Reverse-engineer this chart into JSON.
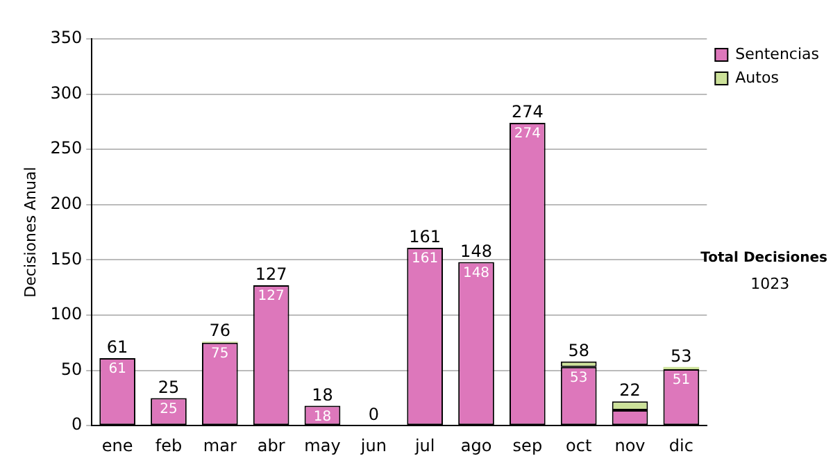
{
  "chart_data": {
    "type": "bar",
    "stacked": true,
    "ylabel": "Decisiones Anual",
    "categories": [
      "ene",
      "feb",
      "mar",
      "abr",
      "may",
      "jun",
      "jul",
      "ago",
      "sep",
      "oct",
      "nov",
      "dic"
    ],
    "series": [
      {
        "name": "Sentencias",
        "color": "#dd77bb",
        "values": [
          61,
          25,
          75,
          127,
          18,
          0,
          161,
          148,
          274,
          53,
          14,
          51
        ],
        "value_labels": [
          "61",
          "25",
          "75",
          "127",
          "18",
          null,
          "161",
          "148",
          "274",
          "53",
          null,
          "51"
        ]
      },
      {
        "name": "Autos",
        "color": "#cce199",
        "values": [
          0,
          0,
          1,
          0,
          0,
          0,
          0,
          0,
          0,
          5,
          8,
          2
        ]
      }
    ],
    "totals": [
      "61",
      "25",
      "76",
      "127",
      "18",
      "0",
      "161",
      "148",
      "274",
      "58",
      "22",
      "53"
    ],
    "ylim": [
      0,
      350
    ],
    "yticks": [
      0,
      50,
      100,
      150,
      200,
      250,
      300,
      350
    ],
    "grid": "y",
    "legend": "top right",
    "annotations": [
      "Total Decisiones",
      "1023"
    ]
  }
}
